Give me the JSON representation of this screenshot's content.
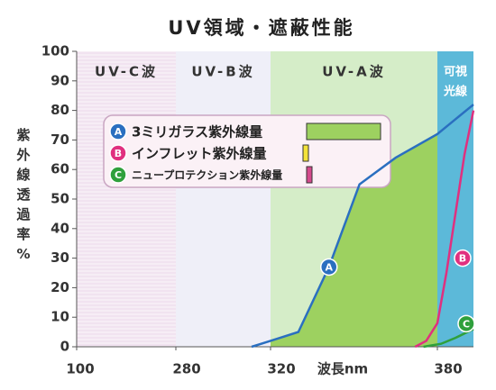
{
  "chart_data": {
    "type": "line",
    "title": "UV領域・遮蔽性能",
    "y_label": "紫外線透過率%",
    "x_label": "波長nm",
    "xlim": [
      100,
      400
    ],
    "xticks": [
      100,
      280,
      320,
      380
    ],
    "ylim": [
      0,
      100
    ],
    "yticks": [
      0,
      10,
      20,
      30,
      40,
      50,
      60,
      70,
      80,
      90,
      100
    ],
    "regions": [
      {
        "from": 100,
        "to": 280,
        "label": [
          "UV-C波"
        ],
        "color": "#f1e3f0"
      },
      {
        "from": 280,
        "to": 320,
        "label": [
          "UV-B波"
        ],
        "color": "#efeff8"
      },
      {
        "from": 320,
        "to": 380,
        "label": [
          "UV-A波"
        ],
        "color": "#d5edc8"
      },
      {
        "from": 380,
        "to": 400,
        "label": [
          "可視",
          "光線"
        ],
        "color": "#5cb9d9"
      }
    ],
    "series": [
      {
        "name": "3ミリガラス紫外線量",
        "marker": "A",
        "color": "#2a6fc0",
        "x": [
          312,
          320,
          330,
          341,
          352,
          365,
          380,
          390,
          400
        ],
        "values": [
          0,
          2,
          5,
          27,
          55,
          64,
          72,
          77,
          82
        ]
      },
      {
        "name": "インフレット紫外線量",
        "marker": "B",
        "color": "#e0307f",
        "x": [
          372,
          376,
          380,
          385,
          390,
          395,
          400
        ],
        "values": [
          0,
          2,
          8,
          25,
          45,
          65,
          80
        ]
      },
      {
        "name": "ニュープロテクション紫外線量",
        "marker": "C",
        "color": "#2fa03c",
        "x": [
          375,
          382,
          390,
          400
        ],
        "values": [
          0,
          1,
          3,
          6
        ]
      }
    ]
  }
}
